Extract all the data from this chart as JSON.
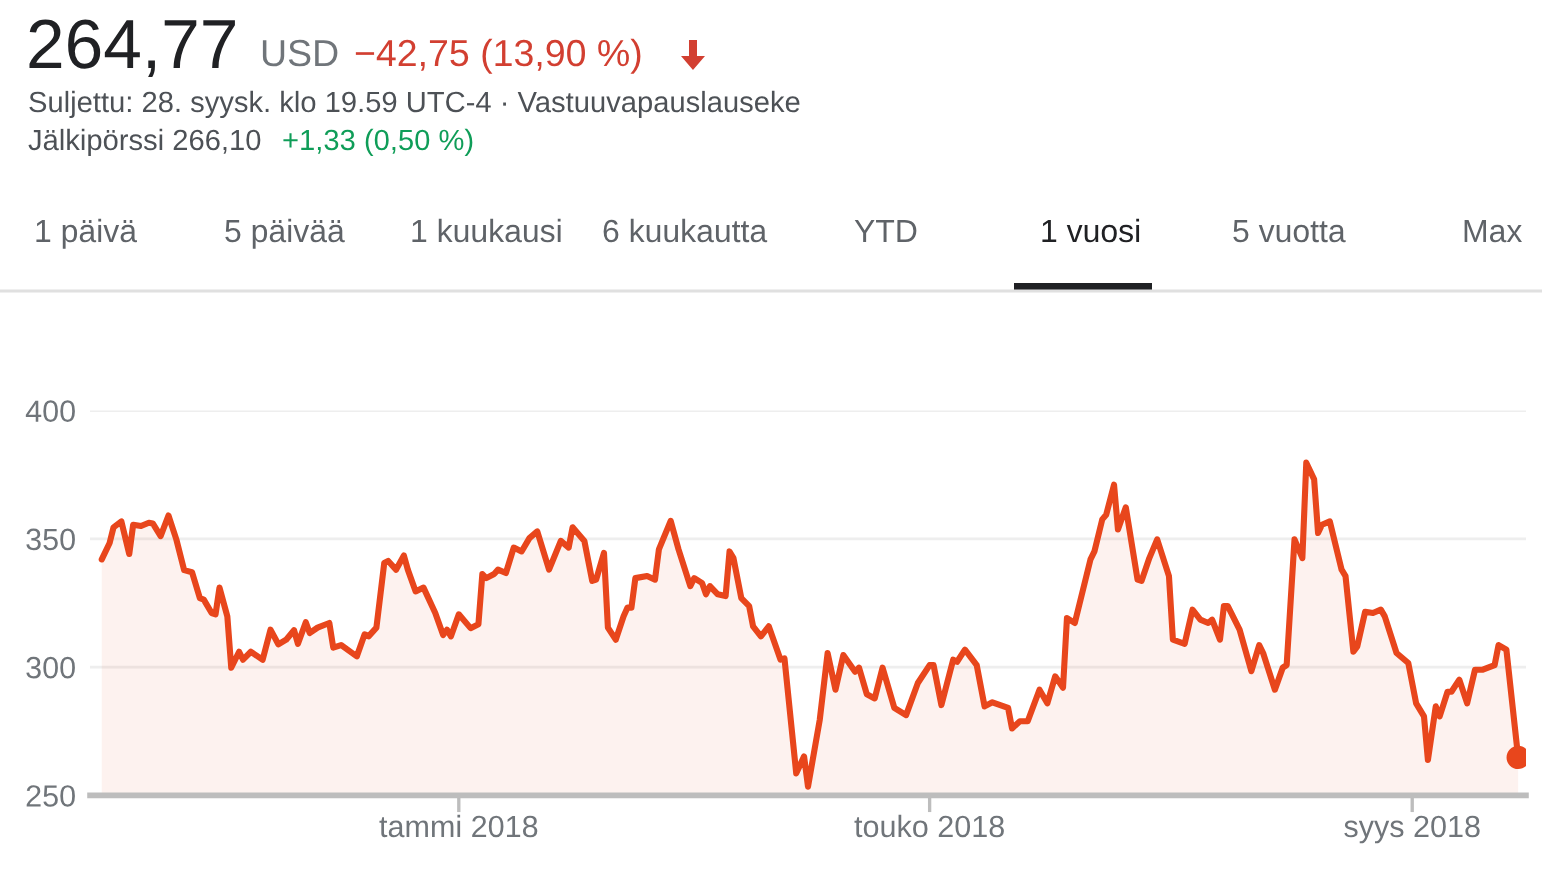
{
  "chart_data": {
    "type": "area",
    "title": "264,77",
    "subtitle": "Suljettu: 28. syysk. klo 19.59 UTC-4 · Vastuuvapauslauseke",
    "annotations": [
      "USD",
      "−42,75 (13,90 %)",
      "Jälkipörssi 266,10",
      "+1,33 (0,50 %)",
      "1 päivä",
      "5 päivää",
      "1 kuukausi",
      "6 kuukautta",
      "YTD",
      "1 vuosi",
      "5 vuotta",
      "Max"
    ],
    "series": [
      {
        "color": "#e8461c",
        "x": [
          "2017-10-02",
          "2017-10-04",
          "2017-10-05",
          "2017-10-07",
          "2017-10-09",
          "2017-10-10",
          "2017-10-12",
          "2017-10-14",
          "2017-10-15",
          "2017-10-17",
          "2017-10-19",
          "2017-10-21",
          "2017-10-23",
          "2017-10-25",
          "2017-10-27",
          "2017-10-28",
          "2017-10-30",
          "2017-10-31",
          "2017-11-01",
          "2017-11-03",
          "2017-11-04",
          "2017-11-06",
          "2017-11-07",
          "2017-11-09",
          "2017-11-12",
          "2017-11-14",
          "2017-11-16",
          "2017-11-18",
          "2017-11-20",
          "2017-11-21",
          "2017-11-23",
          "2017-11-24",
          "2017-11-26",
          "2017-11-29",
          "2017-11-30",
          "2017-12-02",
          "2017-12-06",
          "2017-12-08",
          "2017-12-09",
          "2017-12-11",
          "2017-12-13",
          "2017-12-14",
          "2017-12-16",
          "2017-12-18",
          "2017-12-19",
          "2017-12-21",
          "2017-12-23",
          "2017-12-26",
          "2017-12-28",
          "2017-12-29",
          "2017-12-30",
          "2018-01-01",
          "2018-01-04",
          "2018-01-06",
          "2018-01-07",
          "2018-01-08",
          "2018-01-10",
          "2018-01-11",
          "2018-01-13",
          "2018-01-15",
          "2018-01-17",
          "2018-01-19",
          "2018-01-21",
          "2018-01-24",
          "2018-01-27",
          "2018-01-29",
          "2018-01-30",
          "2018-02-02",
          "2018-02-04",
          "2018-02-05",
          "2018-02-07",
          "2018-02-08",
          "2018-02-10",
          "2018-02-12",
          "2018-02-13",
          "2018-02-14",
          "2018-02-15",
          "2018-02-18",
          "2018-02-20",
          "2018-02-21",
          "2018-02-24",
          "2018-02-26",
          "2018-03-01",
          "2018-03-02",
          "2018-03-04",
          "2018-03-05",
          "2018-03-06",
          "2018-03-08",
          "2018-03-10",
          "2018-03-11",
          "2018-03-12",
          "2018-03-14",
          "2018-03-16",
          "2018-03-17",
          "2018-03-19",
          "2018-03-21",
          "2018-03-24",
          "2018-03-25",
          "2018-03-28",
          "2018-03-30",
          "2018-03-31",
          "2018-04-03",
          "2018-04-05",
          "2018-04-07",
          "2018-04-09",
          "2018-04-12",
          "2018-04-13",
          "2018-04-15",
          "2018-04-17",
          "2018-04-19",
          "2018-04-22",
          "2018-04-25",
          "2018-04-28",
          "2018-05-01",
          "2018-05-02",
          "2018-05-04",
          "2018-05-07",
          "2018-05-08",
          "2018-05-10",
          "2018-05-13",
          "2018-05-15",
          "2018-05-17",
          "2018-05-21",
          "2018-05-22",
          "2018-05-24",
          "2018-05-26",
          "2018-05-29",
          "2018-05-31",
          "2018-06-02",
          "2018-06-04",
          "2018-06-05",
          "2018-06-07",
          "2018-06-11",
          "2018-06-12",
          "2018-06-14",
          "2018-06-15",
          "2018-06-17",
          "2018-06-18",
          "2018-06-20",
          "2018-06-23",
          "2018-06-24",
          "2018-06-26",
          "2018-06-28",
          "2018-07-01",
          "2018-07-02",
          "2018-07-05",
          "2018-07-07",
          "2018-07-09",
          "2018-07-11",
          "2018-07-12",
          "2018-07-14",
          "2018-07-15",
          "2018-07-16",
          "2018-07-19",
          "2018-07-22",
          "2018-07-24",
          "2018-07-25",
          "2018-07-28",
          "2018-07-30",
          "2018-07-31",
          "2018-08-02",
          "2018-08-04",
          "2018-08-05",
          "2018-08-07",
          "2018-08-08",
          "2018-08-09",
          "2018-08-11",
          "2018-08-14",
          "2018-08-15",
          "2018-08-17",
          "2018-08-18",
          "2018-08-20",
          "2018-08-22",
          "2018-08-24",
          "2018-08-25",
          "2018-08-28",
          "2018-08-31",
          "2018-09-02",
          "2018-09-04",
          "2018-09-05",
          "2018-09-07",
          "2018-09-08",
          "2018-09-10",
          "2018-09-11",
          "2018-09-13",
          "2018-09-15",
          "2018-09-17",
          "2018-09-19",
          "2018-09-22",
          "2018-09-23",
          "2018-09-25",
          "2018-09-28"
        ],
        "values": [
          342.0,
          348.4,
          354.5,
          356.8,
          344.1,
          355.5,
          355.0,
          356.3,
          356.0,
          351.1,
          359.1,
          349.8,
          337.8,
          337.0,
          326.9,
          326.3,
          321.1,
          320.6,
          331.0,
          319.8,
          299.8,
          306.0,
          302.9,
          306.0,
          302.9,
          314.6,
          308.9,
          310.7,
          314.4,
          309.1,
          317.5,
          313.3,
          315.4,
          317.2,
          307.6,
          308.6,
          304.2,
          312.8,
          312.0,
          315.4,
          340.6,
          341.4,
          338.0,
          343.5,
          338.0,
          329.5,
          331.0,
          321.1,
          312.5,
          314.6,
          312.0,
          320.6,
          315.2,
          316.7,
          336.3,
          334.7,
          336.3,
          338.0,
          336.7,
          346.6,
          345.1,
          350.3,
          352.9,
          338.0,
          349.2,
          346.6,
          354.5,
          349.2,
          333.6,
          334.1,
          344.5,
          315.4,
          310.7,
          319.8,
          323.2,
          323.2,
          334.7,
          335.5,
          334.1,
          345.9,
          357.0,
          345.9,
          331.6,
          334.7,
          332.8,
          328.4,
          331.6,
          328.4,
          327.7,
          345.1,
          342.5,
          326.9,
          323.8,
          315.9,
          312.0,
          315.9,
          302.9,
          303.4,
          258.6,
          265.2,
          253.4,
          279.5,
          305.5,
          291.2,
          304.7,
          298.2,
          299.8,
          289.4,
          287.8,
          299.8,
          284.1,
          281.3,
          293.8,
          300.8,
          300.8,
          285.2,
          302.9,
          302.1,
          306.8,
          300.8,
          284.7,
          286.3,
          284.1,
          276.1,
          278.9,
          278.9,
          291.2,
          285.9,
          296.4,
          292.0,
          319.1,
          317.2,
          342.0,
          345.1,
          357.6,
          359.4,
          371.1,
          353.7,
          362.3,
          334.1,
          333.6,
          342.5,
          349.8,
          335.5,
          310.7,
          309.1,
          322.4,
          318.5,
          317.2,
          318.5,
          310.7,
          323.8,
          323.8,
          314.6,
          298.4,
          308.6,
          305.5,
          291.2,
          299.8,
          300.8,
          349.8,
          342.5,
          379.7,
          373.2,
          352.3,
          355.5,
          356.8,
          338.0,
          335.5,
          306.0,
          308.1,
          321.6,
          321.1,
          322.4,
          319.8,
          305.5,
          301.6,
          285.9,
          280.8,
          263.8,
          284.7,
          280.8,
          290.4,
          290.4,
          295.1,
          285.9,
          299.0,
          299.0,
          300.8,
          308.6,
          306.8,
          264.8
        ]
      },
      {
        "type": "scatter",
        "color": "#e8461c",
        "marker": "circle",
        "x": [
          "2018-09-28"
        ],
        "values": [
          264.8
        ]
      }
    ],
    "xlim": [
      "2017-09-29",
      "2018-09-30"
    ],
    "xticks": [
      {
        "value": "2018-01-01",
        "label": "tammi 2018"
      },
      {
        "value": "2018-05-01",
        "label": "touko 2018"
      },
      {
        "value": "2018-09-01",
        "label": "syys 2018"
      }
    ],
    "ylim": [
      250,
      400
    ],
    "yticks": [
      250,
      300,
      350,
      400
    ],
    "grid": "y"
  }
}
